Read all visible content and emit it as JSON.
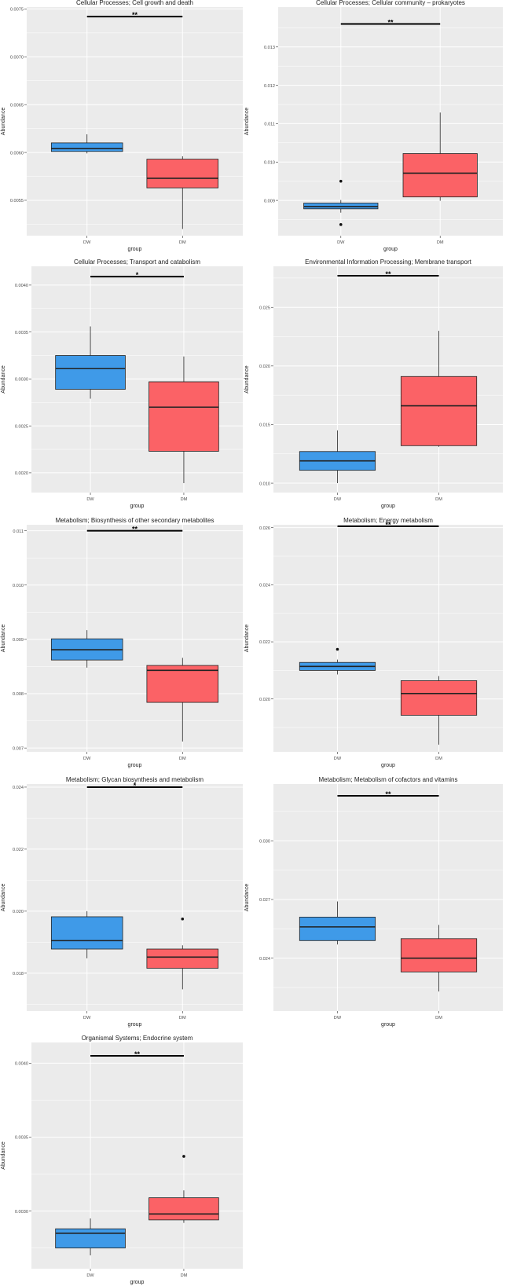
{
  "colors": {
    "DW": "#3f9ae8",
    "DM": "#fb6266",
    "panel_bg": "#ebebeb",
    "grid": "#ffffff"
  },
  "chart_data": [
    {
      "type": "boxplot",
      "title": "Cellular Processes; Cell growth and death",
      "xlabel": "group",
      "ylabel": "Abundance",
      "categories": [
        "DW",
        "DM"
      ],
      "ylim": [
        0.00513,
        0.00752
      ],
      "yticks": [
        0.0055,
        0.006,
        0.0065,
        0.007,
        0.0075
      ],
      "ytick_labels": [
        "0.0055",
        "0.0060",
        "0.0065",
        "0.0070",
        "0.0075"
      ],
      "boxes": [
        {
          "group": "DW",
          "whisker_low": 0.00599,
          "q1": 0.00601,
          "median": 0.00604,
          "q3": 0.0061,
          "whisker_high": 0.00619,
          "outliers": []
        },
        {
          "group": "DM",
          "whisker_low": 0.0052,
          "q1": 0.00563,
          "median": 0.00573,
          "q3": 0.00593,
          "whisker_high": 0.00596,
          "outliers": []
        }
      ],
      "significance": {
        "label": "**",
        "y": 0.00742
      }
    },
    {
      "type": "boxplot",
      "title": "Cellular Processes; Cellular community – prokaryotes",
      "xlabel": "group",
      "ylabel": "Abundance",
      "categories": [
        "DW",
        "DM"
      ],
      "ylim": [
        0.00808,
        0.01404
      ],
      "yticks": [
        0.009,
        0.01,
        0.011,
        0.012,
        0.013
      ],
      "ytick_labels": [
        "0.009",
        "0.010",
        "0.011",
        "0.012",
        "0.013"
      ],
      "boxes": [
        {
          "group": "DW",
          "whisker_low": 0.00868,
          "q1": 0.00878,
          "median": 0.00884,
          "q3": 0.00893,
          "whisker_high": 0.00901,
          "outliers": [
            0.0095,
            0.00837
          ]
        },
        {
          "group": "DM",
          "whisker_low": 0.00899,
          "q1": 0.00909,
          "median": 0.00971,
          "q3": 0.01022,
          "whisker_high": 0.01129,
          "outliers": []
        }
      ],
      "significance": {
        "label": "**",
        "y": 0.0136
      }
    },
    {
      "type": "boxplot",
      "title": "Cellular Processes; Transport and catabolism",
      "xlabel": "group",
      "ylabel": "Abundance",
      "categories": [
        "DW",
        "DM"
      ],
      "ylim": [
        0.00179,
        0.0042
      ],
      "yticks": [
        0.002,
        0.0025,
        0.003,
        0.0035,
        0.004
      ],
      "ytick_labels": [
        "0.0020",
        "0.0025",
        "0.0030",
        "0.0035",
        "0.0040"
      ],
      "boxes": [
        {
          "group": "DW",
          "whisker_low": 0.00279,
          "q1": 0.00289,
          "median": 0.00311,
          "q3": 0.00325,
          "whisker_high": 0.00356,
          "outliers": []
        },
        {
          "group": "DM",
          "whisker_low": 0.00189,
          "q1": 0.00223,
          "median": 0.0027,
          "q3": 0.00297,
          "whisker_high": 0.00324,
          "outliers": []
        }
      ],
      "significance": {
        "label": "*",
        "y": 0.00409
      }
    },
    {
      "type": "boxplot",
      "title": "Environmental Information Processing; Membrane transport",
      "xlabel": "group",
      "ylabel": "Abundance",
      "categories": [
        "DW",
        "DM"
      ],
      "ylim": [
        0.0092,
        0.0285
      ],
      "yticks": [
        0.01,
        0.015,
        0.02,
        0.025
      ],
      "ytick_labels": [
        "0.010",
        "0.015",
        "0.020",
        "0.025"
      ],
      "boxes": [
        {
          "group": "DW",
          "whisker_low": 0.01,
          "q1": 0.0111,
          "median": 0.0119,
          "q3": 0.0127,
          "whisker_high": 0.0145,
          "outliers": []
        },
        {
          "group": "DM",
          "whisker_low": 0.0131,
          "q1": 0.0132,
          "median": 0.0166,
          "q3": 0.0191,
          "whisker_high": 0.023,
          "outliers": []
        }
      ],
      "significance": {
        "label": "**",
        "y": 0.0277
      }
    },
    {
      "type": "boxplot",
      "title": "Metabolism; Biosynthesis of other secondary metabolites",
      "xlabel": "group",
      "ylabel": "Abundance",
      "categories": [
        "DW",
        "DM"
      ],
      "ylim": [
        0.00693,
        0.01111
      ],
      "yticks": [
        0.007,
        0.008,
        0.009,
        0.01,
        0.011
      ],
      "ytick_labels": [
        "0.007",
        "0.008",
        "0.009",
        "0.010",
        "0.011"
      ],
      "boxes": [
        {
          "group": "DW",
          "whisker_low": 0.00848,
          "q1": 0.00862,
          "median": 0.00881,
          "q3": 0.00901,
          "whisker_high": 0.00917,
          "outliers": []
        },
        {
          "group": "DM",
          "whisker_low": 0.00712,
          "q1": 0.00784,
          "median": 0.00843,
          "q3": 0.00852,
          "whisker_high": 0.00866,
          "outliers": []
        }
      ],
      "significance": {
        "label": "**",
        "y": 0.011
      }
    },
    {
      "type": "boxplot",
      "title": "Metabolism; Energy metabolism",
      "xlabel": "group",
      "ylabel": "Abundance",
      "categories": [
        "DW",
        "DM"
      ],
      "ylim": [
        0.01815,
        0.0261
      ],
      "yticks": [
        0.02,
        0.022,
        0.024,
        0.026
      ],
      "ytick_labels": [
        "0.020",
        "0.022",
        "0.024",
        "0.026"
      ],
      "boxes": [
        {
          "group": "DW",
          "whisker_low": 0.02086,
          "q1": 0.021,
          "median": 0.02114,
          "q3": 0.02128,
          "whisker_high": 0.02138,
          "outliers": [
            0.02174
          ]
        },
        {
          "group": "DM",
          "whisker_low": 0.0184,
          "q1": 0.01943,
          "median": 0.02019,
          "q3": 0.02064,
          "whisker_high": 0.0208,
          "outliers": []
        }
      ],
      "significance": {
        "label": "**",
        "y": 0.02605
      }
    },
    {
      "type": "boxplot",
      "title": "Metabolism; Glycan biosynthesis and metabolism",
      "xlabel": "group",
      "ylabel": "Abundance",
      "categories": [
        "DW",
        "DM"
      ],
      "ylim": [
        0.01678,
        0.0241
      ],
      "yticks": [
        0.018,
        0.02,
        0.022,
        0.024
      ],
      "ytick_labels": [
        "0.018",
        "0.020",
        "0.022",
        "0.024"
      ],
      "boxes": [
        {
          "group": "DW",
          "whisker_low": 0.01848,
          "q1": 0.01878,
          "median": 0.01905,
          "q3": 0.01982,
          "whisker_high": 0.02,
          "outliers": []
        },
        {
          "group": "DM",
          "whisker_low": 0.01748,
          "q1": 0.01816,
          "median": 0.01852,
          "q3": 0.01878,
          "whisker_high": 0.0189,
          "outliers": [
            0.01975
          ]
        }
      ],
      "significance": {
        "label": "*",
        "y": 0.024
      }
    },
    {
      "type": "boxplot",
      "title": "Metabolism; Metabolism of cofactors and vitamins",
      "xlabel": "group",
      "ylabel": "Abundance",
      "categories": [
        "DW",
        "DM"
      ],
      "ylim": [
        0.0213,
        0.0329
      ],
      "yticks": [
        0.024,
        0.027,
        0.03
      ],
      "ytick_labels": [
        "0.024",
        "0.027",
        "0.030"
      ],
      "boxes": [
        {
          "group": "DW",
          "whisker_low": 0.0247,
          "q1": 0.0249,
          "median": 0.0256,
          "q3": 0.0261,
          "whisker_high": 0.0269,
          "outliers": []
        },
        {
          "group": "DM",
          "whisker_low": 0.0223,
          "q1": 0.0233,
          "median": 0.024,
          "q3": 0.025,
          "whisker_high": 0.0257,
          "outliers": []
        }
      ],
      "significance": {
        "label": "**",
        "y": 0.0323
      }
    },
    {
      "type": "boxplot",
      "title": "Organismal Systems; Endocrine system",
      "xlabel": "group",
      "ylabel": "Abundance",
      "categories": [
        "DW",
        "DM"
      ],
      "ylim": [
        0.00261,
        0.00414
      ],
      "yticks": [
        0.003,
        0.0035,
        0.004
      ],
      "ytick_labels": [
        "0.0030",
        "0.0035",
        "0.0040"
      ],
      "boxes": [
        {
          "group": "DW",
          "whisker_low": 0.0027,
          "q1": 0.00275,
          "median": 0.00285,
          "q3": 0.00288,
          "whisker_high": 0.00295,
          "outliers": []
        },
        {
          "group": "DM",
          "whisker_low": 0.00292,
          "q1": 0.00294,
          "median": 0.00298,
          "q3": 0.00309,
          "whisker_high": 0.00314,
          "outliers": [
            0.00337
          ]
        }
      ],
      "significance": {
        "label": "**",
        "y": 0.00405
      }
    }
  ]
}
